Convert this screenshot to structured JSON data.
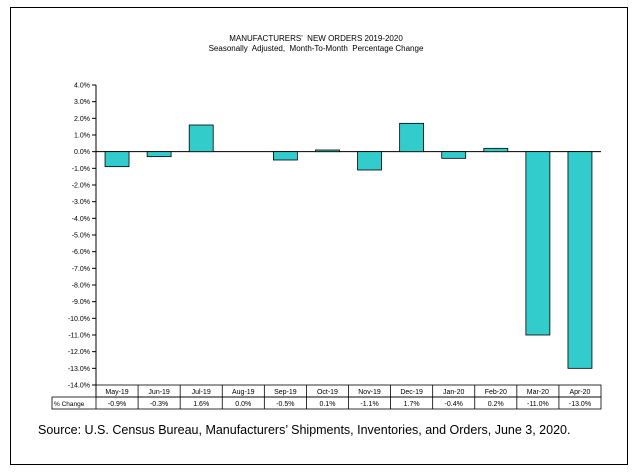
{
  "chart_data": {
    "type": "bar",
    "title": "MANUFACTURERS'  NEW ORDERS 2019-2020",
    "subtitle": "Seasonally  Adjusted,  Month-To-Month  Percentage Change",
    "categories": [
      "May-19",
      "Jun-19",
      "Jul-19",
      "Aug-19",
      "Sep-19",
      "Oct-19",
      "Nov-19",
      "Dec-19",
      "Jan-20",
      "Feb-20",
      "Mar-20",
      "Apr-20"
    ],
    "values": [
      -0.9,
      -0.3,
      1.6,
      0.0,
      -0.5,
      0.1,
      -1.1,
      1.7,
      -0.4,
      0.2,
      -11.0,
      -13.0
    ],
    "value_labels": [
      "-0.9%",
      "-0.3%",
      "1.6%",
      "0.0%",
      "-0.5%",
      "0.1%",
      "-1.1%",
      "1.7%",
      "-0.4%",
      "0.2%",
      "-11.0%",
      "-13.0%"
    ],
    "table_row_label": "% Change",
    "ylim": [
      -14,
      4
    ],
    "ytick_labels": [
      "4.0%",
      "3.0%",
      "2.0%",
      "1.0%",
      "0.0%",
      "-1.0%",
      "-2.0%",
      "-3.0%",
      "-4.0%",
      "-5.0%",
      "-6.0%",
      "-7.0%",
      "-8.0%",
      "-9.0%",
      "-10.0%",
      "-11.0%",
      "-12.0%",
      "-13.0%",
      "-14.0%"
    ],
    "bar_color": "#33CCCC",
    "grid": false,
    "legend": "none"
  },
  "source_text": "Source: U.S. Census Bureau, Manufacturers’ Shipments, Inventories, and Orders, June 3, 2020."
}
